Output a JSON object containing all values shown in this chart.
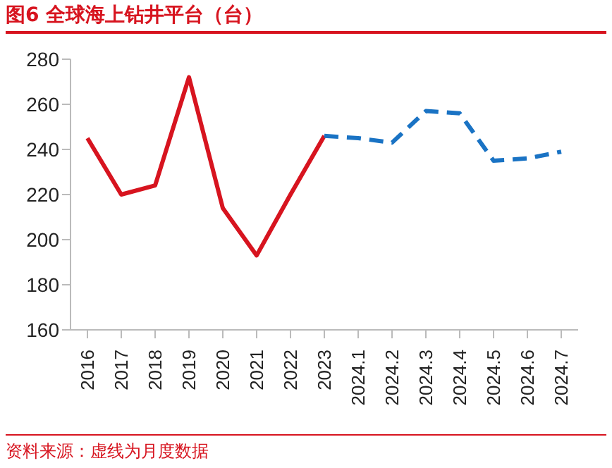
{
  "chart_data": {
    "type": "line",
    "title": "图6  全球海上钻井平台（台）",
    "annotations": [
      "资料来源：虚线为月度数据"
    ],
    "categories": [
      "2016",
      "2017",
      "2018",
      "2019",
      "2020",
      "2021",
      "2022",
      "2023",
      "2024.1",
      "2024.2",
      "2024.3",
      "2024.4",
      "2024.5",
      "2024.6",
      "2024.7"
    ],
    "series": [
      {
        "color": "#d7141f",
        "line_style": "solid",
        "values": [
          245,
          220,
          224,
          272,
          214,
          193,
          220,
          246,
          null,
          null,
          null,
          null,
          null,
          null,
          null
        ]
      },
      {
        "color": "#1a73c4",
        "line_style": "dashed",
        "values": [
          null,
          null,
          null,
          null,
          null,
          null,
          null,
          246,
          245,
          243,
          257,
          256,
          235,
          236,
          239
        ]
      }
    ],
    "ylim": [
      160,
      280
    ],
    "yticks": [
      160,
      180,
      200,
      220,
      240,
      260,
      280
    ],
    "grid": false,
    "marker": "none"
  }
}
